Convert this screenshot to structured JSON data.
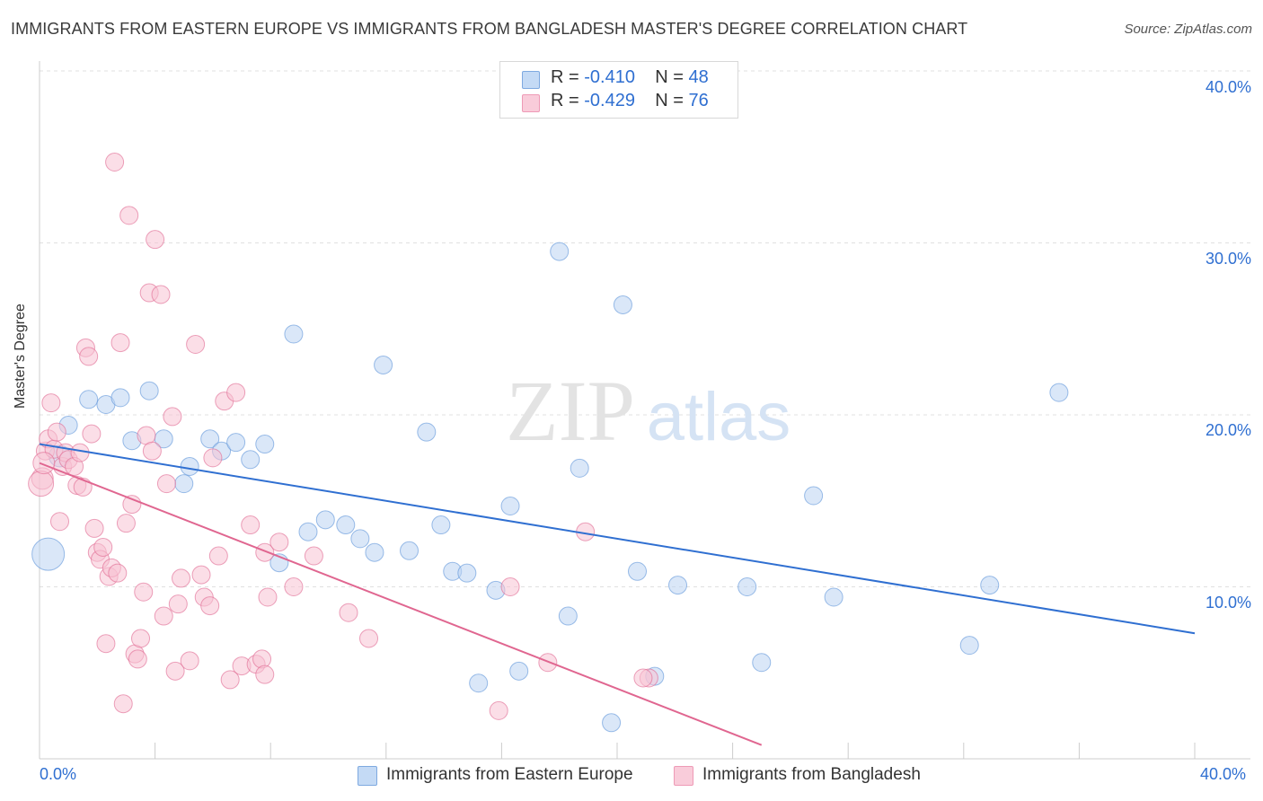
{
  "title": "IMMIGRANTS FROM EASTERN EUROPE VS IMMIGRANTS FROM BANGLADESH MASTER'S DEGREE CORRELATION CHART",
  "source": "Source: ZipAtlas.com",
  "watermark": {
    "zip": "ZIP",
    "atlas": "atlas"
  },
  "stats": [
    {
      "r_label": "R =",
      "r_value": "-0.410",
      "n_label": "N =",
      "n_value": "48",
      "color": "#a9c8ef"
    },
    {
      "r_label": "R =",
      "r_value": "-0.429",
      "n_label": "N =",
      "n_value": "76",
      "color": "#f5b3c8"
    }
  ],
  "chart_data": {
    "type": "scatter",
    "xlabel": "",
    "ylabel": "Master's Degree",
    "xlim": [
      0,
      40
    ],
    "ylim": [
      0,
      40
    ],
    "x_tick_labels": [
      "0.0%",
      "40.0%"
    ],
    "y_tick_labels": [
      "10.0%",
      "20.0%",
      "30.0%",
      "40.0%"
    ],
    "y_ticks": [
      10,
      20,
      30,
      40
    ],
    "grid": true,
    "legend_position": "bottom",
    "series": [
      {
        "name": "Immigrants from Eastern Europe",
        "color": "#5b93d8",
        "fill": "#bcd4f2",
        "trend": [
          [
            0,
            18.3
          ],
          [
            40,
            7.3
          ]
        ],
        "points": [
          [
            1.0,
            19.4
          ],
          [
            1.7,
            20.9
          ],
          [
            2.3,
            20.6
          ],
          [
            2.8,
            21.0
          ],
          [
            3.2,
            18.5
          ],
          [
            3.8,
            21.4
          ],
          [
            4.3,
            18.6
          ],
          [
            5.0,
            16.0
          ],
          [
            5.2,
            17.0
          ],
          [
            5.9,
            18.6
          ],
          [
            6.3,
            17.9
          ],
          [
            6.8,
            18.4
          ],
          [
            7.3,
            17.4
          ],
          [
            7.8,
            18.3
          ],
          [
            8.3,
            11.4
          ],
          [
            8.8,
            24.7
          ],
          [
            9.3,
            13.2
          ],
          [
            9.9,
            13.9
          ],
          [
            10.6,
            13.6
          ],
          [
            11.1,
            12.8
          ],
          [
            11.6,
            12.0
          ],
          [
            11.9,
            22.9
          ],
          [
            12.8,
            12.1
          ],
          [
            13.4,
            19.0
          ],
          [
            13.9,
            13.6
          ],
          [
            14.3,
            10.9
          ],
          [
            14.8,
            10.8
          ],
          [
            15.2,
            4.4
          ],
          [
            15.8,
            9.8
          ],
          [
            16.3,
            14.7
          ],
          [
            16.6,
            5.1
          ],
          [
            18.0,
            29.5
          ],
          [
            18.3,
            8.3
          ],
          [
            18.7,
            16.9
          ],
          [
            19.8,
            2.1
          ],
          [
            20.2,
            26.4
          ],
          [
            20.7,
            10.9
          ],
          [
            21.3,
            4.8
          ],
          [
            22.1,
            10.1
          ],
          [
            25.0,
            5.6
          ],
          [
            24.5,
            10.0
          ],
          [
            26.8,
            15.3
          ],
          [
            27.5,
            9.4
          ],
          [
            32.2,
            6.6
          ],
          [
            32.9,
            10.1
          ],
          [
            35.3,
            21.3
          ],
          [
            0.3,
            11.9
          ],
          [
            0.7,
            17.6
          ]
        ],
        "sizes": [
          10,
          10,
          10,
          10,
          10,
          10,
          10,
          10,
          10,
          10,
          10,
          10,
          10,
          10,
          10,
          10,
          10,
          10,
          10,
          10,
          10,
          10,
          10,
          10,
          10,
          10,
          10,
          10,
          10,
          10,
          10,
          10,
          10,
          10,
          10,
          10,
          10,
          10,
          10,
          10,
          10,
          10,
          10,
          10,
          10,
          10,
          18,
          12
        ]
      },
      {
        "name": "Immigrants from Bangladesh",
        "color": "#e06690",
        "fill": "#f7c3d3",
        "trend": [
          [
            0,
            17.2
          ],
          [
            25.0,
            0.8
          ]
        ],
        "points": [
          [
            0.1,
            16.3
          ],
          [
            0.2,
            17.9
          ],
          [
            0.3,
            18.6
          ],
          [
            0.4,
            20.7
          ],
          [
            0.5,
            18.0
          ],
          [
            0.6,
            19.0
          ],
          [
            0.7,
            13.8
          ],
          [
            0.8,
            17.0
          ],
          [
            0.9,
            17.8
          ],
          [
            1.0,
            17.4
          ],
          [
            1.2,
            17.0
          ],
          [
            1.3,
            15.9
          ],
          [
            1.4,
            17.8
          ],
          [
            1.5,
            15.8
          ],
          [
            1.6,
            23.9
          ],
          [
            1.7,
            23.4
          ],
          [
            1.8,
            18.9
          ],
          [
            1.9,
            13.4
          ],
          [
            2.0,
            12.0
          ],
          [
            2.1,
            11.6
          ],
          [
            2.2,
            12.3
          ],
          [
            2.3,
            6.7
          ],
          [
            2.4,
            10.6
          ],
          [
            2.5,
            11.1
          ],
          [
            2.6,
            34.7
          ],
          [
            2.7,
            10.8
          ],
          [
            2.8,
            24.2
          ],
          [
            2.9,
            3.2
          ],
          [
            3.0,
            13.7
          ],
          [
            3.1,
            31.6
          ],
          [
            3.2,
            14.8
          ],
          [
            3.3,
            6.1
          ],
          [
            3.4,
            5.8
          ],
          [
            3.5,
            7.0
          ],
          [
            3.6,
            9.7
          ],
          [
            3.7,
            18.8
          ],
          [
            3.8,
            27.1
          ],
          [
            3.9,
            17.9
          ],
          [
            4.0,
            30.2
          ],
          [
            4.2,
            27.0
          ],
          [
            4.3,
            8.3
          ],
          [
            4.4,
            16.0
          ],
          [
            4.6,
            19.9
          ],
          [
            4.7,
            5.1
          ],
          [
            4.8,
            9.0
          ],
          [
            4.9,
            10.5
          ],
          [
            5.2,
            5.7
          ],
          [
            5.4,
            24.1
          ],
          [
            5.6,
            10.7
          ],
          [
            5.7,
            9.4
          ],
          [
            5.9,
            8.9
          ],
          [
            6.0,
            17.5
          ],
          [
            6.2,
            11.8
          ],
          [
            6.4,
            20.8
          ],
          [
            6.6,
            4.6
          ],
          [
            6.8,
            21.3
          ],
          [
            7.0,
            5.4
          ],
          [
            7.3,
            13.6
          ],
          [
            7.5,
            5.5
          ],
          [
            7.7,
            5.8
          ],
          [
            7.8,
            4.9
          ],
          [
            7.8,
            12.0
          ],
          [
            7.9,
            9.4
          ],
          [
            8.3,
            12.6
          ],
          [
            8.8,
            10.0
          ],
          [
            9.5,
            11.8
          ],
          [
            10.7,
            8.5
          ],
          [
            11.4,
            7.0
          ],
          [
            15.9,
            2.8
          ],
          [
            16.3,
            10.0
          ],
          [
            17.6,
            5.6
          ],
          [
            18.9,
            13.2
          ],
          [
            21.1,
            4.7
          ],
          [
            20.9,
            4.7
          ],
          [
            0.05,
            16.0
          ],
          [
            0.15,
            17.2
          ]
        ],
        "sizes": [
          12,
          10,
          10,
          10,
          10,
          10,
          10,
          10,
          10,
          10,
          10,
          10,
          10,
          10,
          10,
          10,
          10,
          10,
          10,
          10,
          10,
          10,
          10,
          10,
          10,
          10,
          10,
          10,
          10,
          10,
          10,
          10,
          10,
          10,
          10,
          10,
          10,
          10,
          10,
          10,
          10,
          10,
          10,
          10,
          10,
          10,
          10,
          10,
          10,
          10,
          10,
          10,
          10,
          10,
          10,
          10,
          10,
          10,
          10,
          10,
          10,
          10,
          10,
          10,
          10,
          10,
          10,
          10,
          10,
          10,
          10,
          10,
          10,
          10,
          14,
          12
        ]
      }
    ]
  }
}
